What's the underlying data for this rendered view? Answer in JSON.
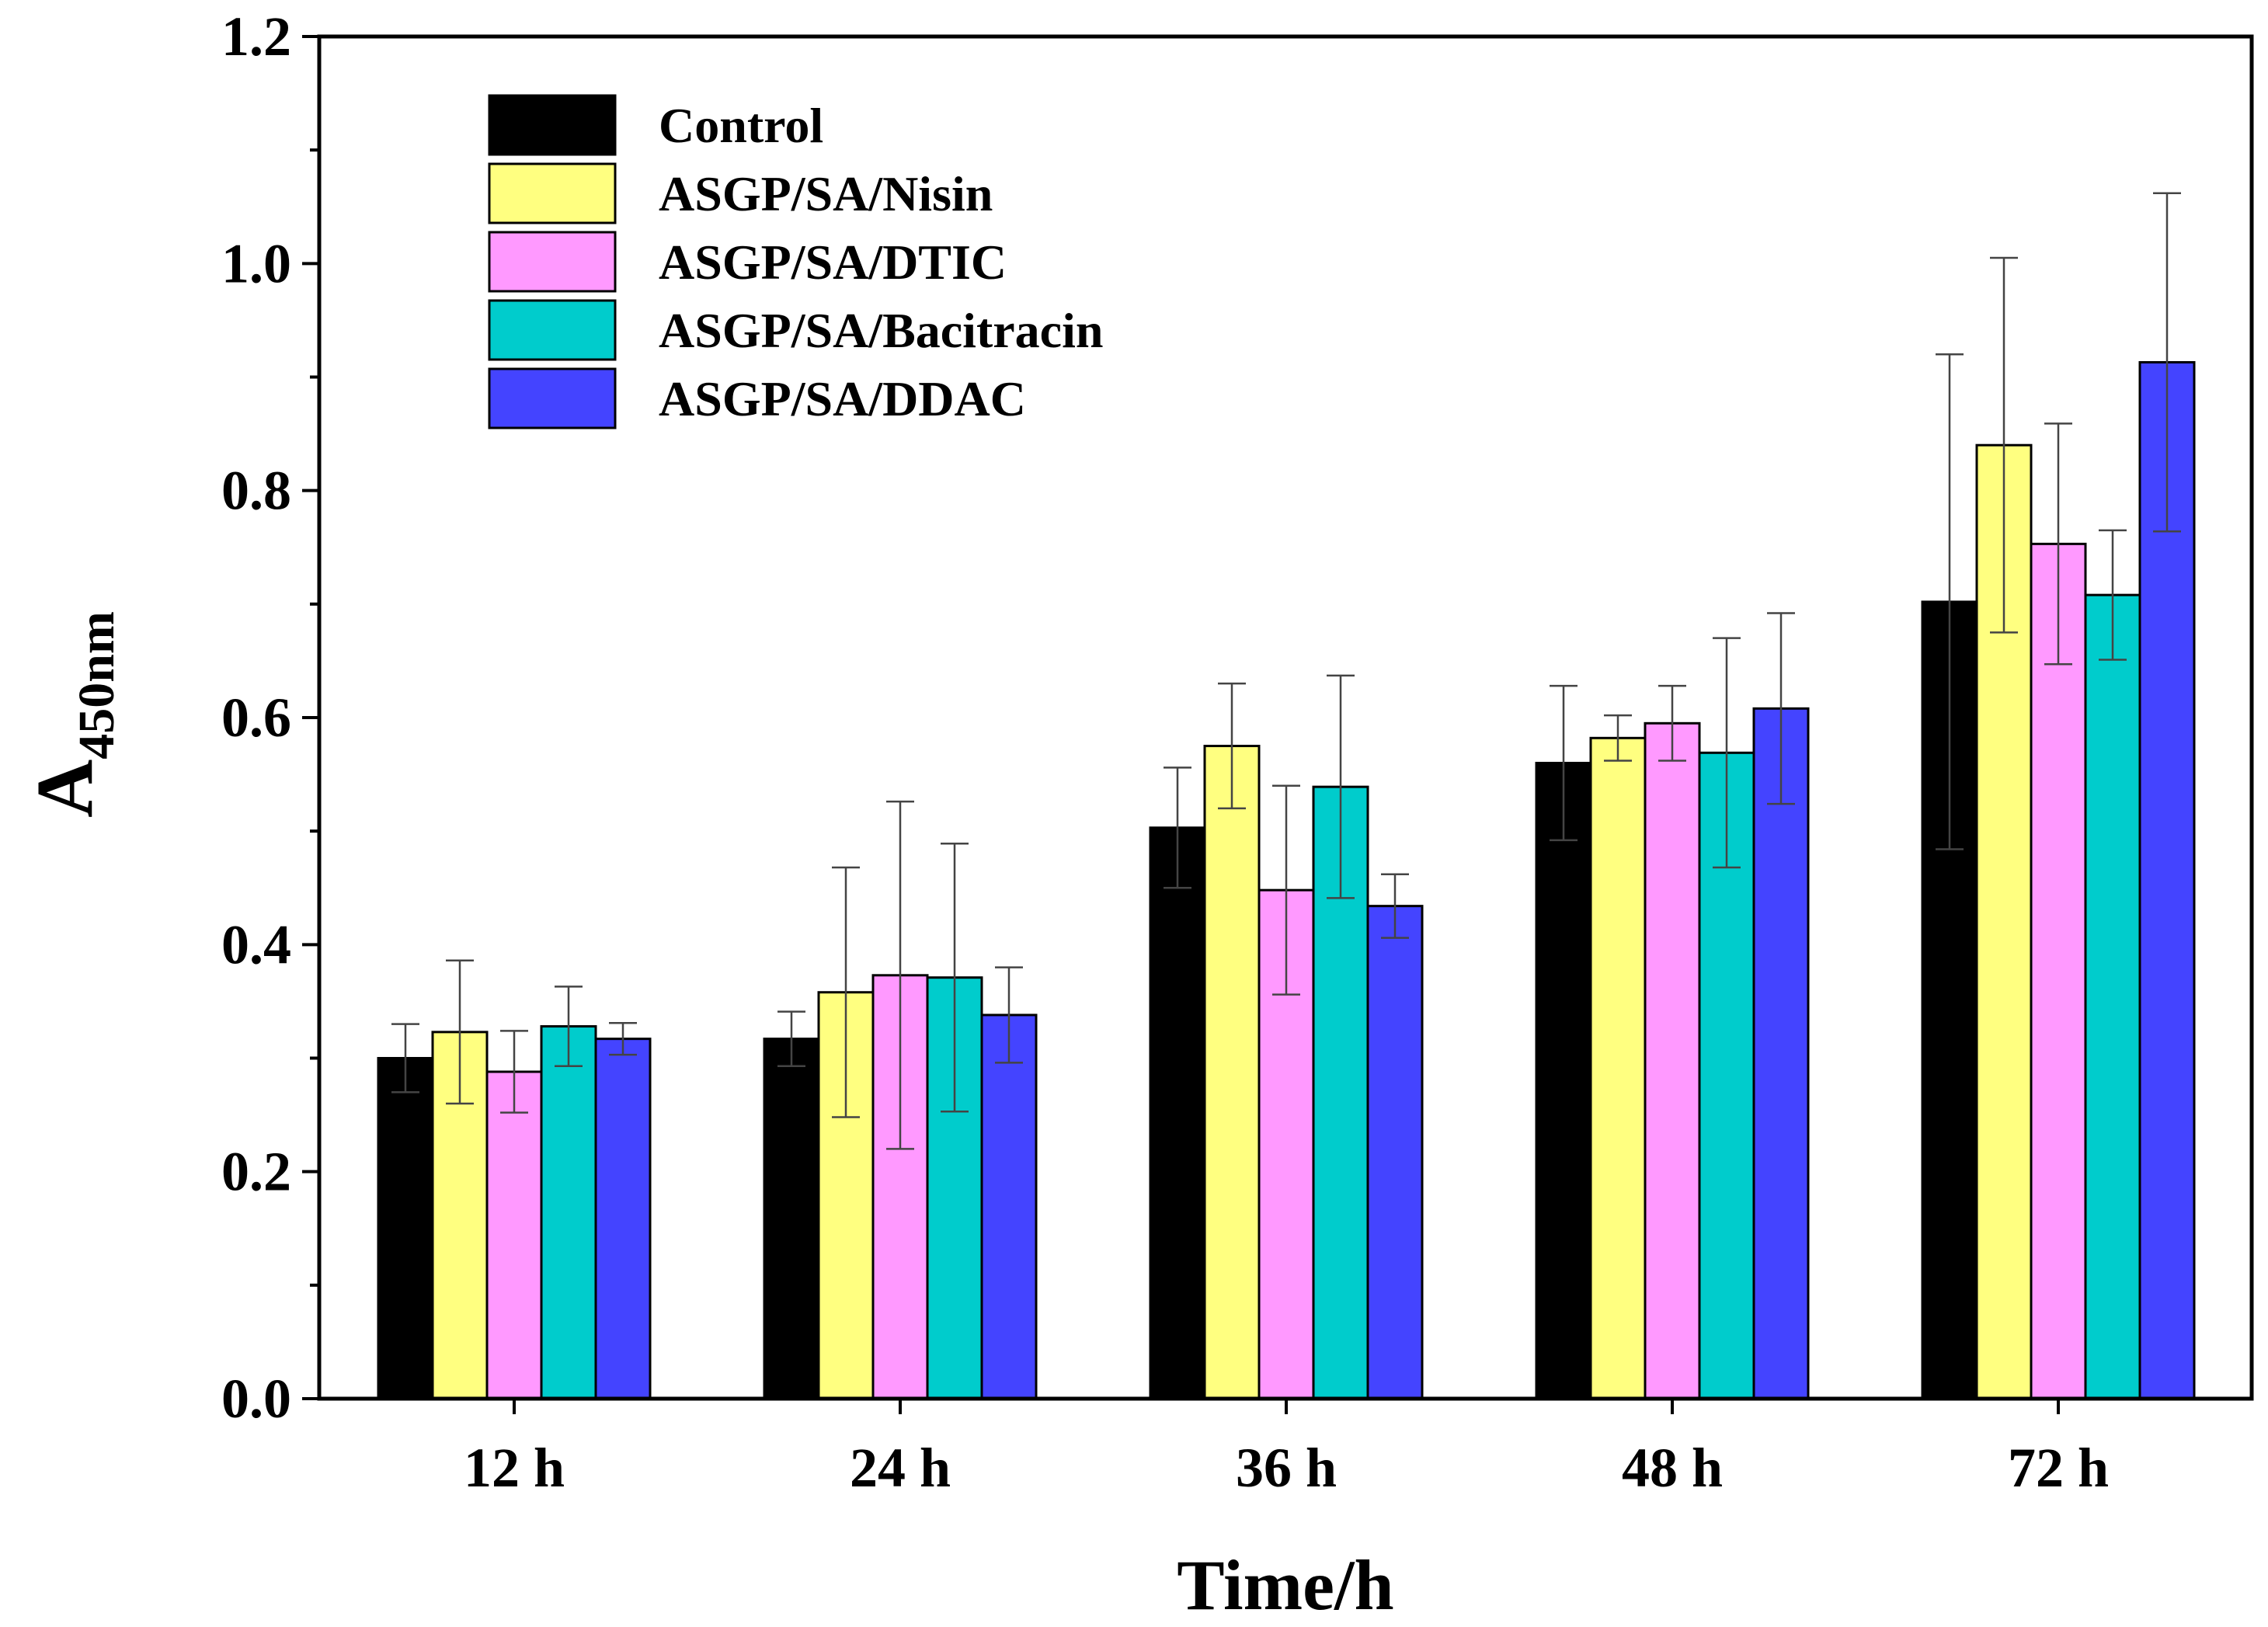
{
  "chart_data": {
    "type": "bar",
    "title": "",
    "xlabel": "Time/h",
    "ylabel_main": "A",
    "ylabel_sub": "450nm",
    "categories": [
      "12 h",
      "24 h",
      "36 h",
      "48 h",
      "72 h"
    ],
    "ylim": [
      0,
      1.2
    ],
    "ytick_labels": [
      "0.0",
      "0.2",
      "0.4",
      "0.6",
      "0.8",
      "1.0",
      "1.2"
    ],
    "yticks": [
      0,
      0.2,
      0.4,
      0.6,
      0.8,
      1.0,
      1.2
    ],
    "legend_position": "top-left",
    "grid": false,
    "series": [
      {
        "name": "Control",
        "color": "#000000",
        "values": [
          0.3,
          0.317,
          0.503,
          0.56,
          0.702
        ],
        "errors": [
          0.03,
          0.024,
          0.053,
          0.068,
          0.218
        ]
      },
      {
        "name": "ASGP/SA/Nisin",
        "color": "#ffff80",
        "values": [
          0.323,
          0.358,
          0.575,
          0.582,
          0.84
        ],
        "errors": [
          0.063,
          0.11,
          0.055,
          0.02,
          0.165
        ]
      },
      {
        "name": "ASGP/SA/DTIC",
        "color": "#ff99ff",
        "values": [
          0.288,
          0.373,
          0.448,
          0.595,
          0.753
        ],
        "errors": [
          0.036,
          0.153,
          0.092,
          0.033,
          0.106
        ]
      },
      {
        "name": "ASGP/SA/Bacitracin",
        "color": "#00cccc",
        "values": [
          0.328,
          0.371,
          0.539,
          0.569,
          0.708
        ],
        "errors": [
          0.035,
          0.118,
          0.098,
          0.101,
          0.057
        ]
      },
      {
        "name": "ASGP/SA/DDAC",
        "color": "#4444ff",
        "values": [
          0.317,
          0.338,
          0.434,
          0.608,
          0.913
        ],
        "errors": [
          0.014,
          0.042,
          0.028,
          0.084,
          0.149
        ]
      }
    ]
  }
}
